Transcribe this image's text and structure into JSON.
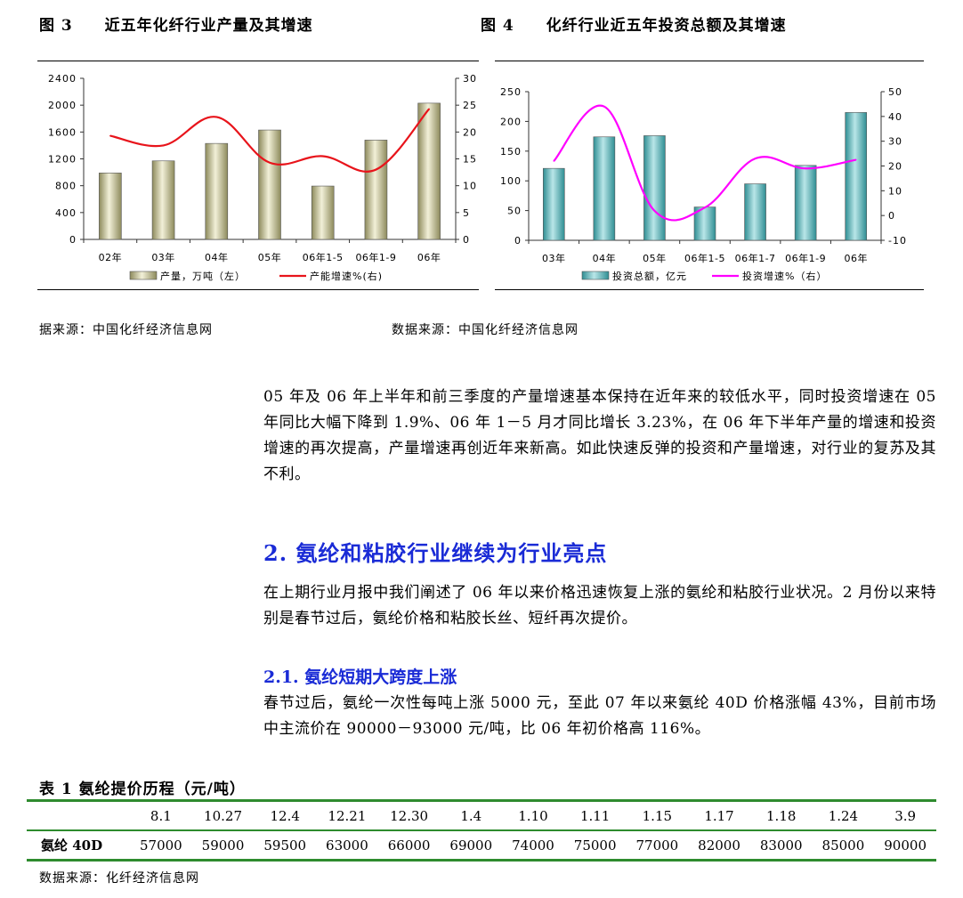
{
  "figure3": {
    "label": "图 3",
    "title": "近五年化纤行业产量及其增速",
    "source": "据来源：中国化纤经济信息网",
    "chart_data": {
      "type": "bar",
      "categories": [
        "02年",
        "03年",
        "04年",
        "05年",
        "06年1-5",
        "06年1-9",
        "06年"
      ],
      "series": [
        {
          "name": "产量，万吨（左）",
          "type": "bar",
          "axis": "left",
          "color": "#c8c49a",
          "values": [
            990,
            1170,
            1430,
            1630,
            795,
            1480,
            2030
          ]
        },
        {
          "name": "产能增速%(右)",
          "type": "line",
          "axis": "right",
          "color": "#e8141b",
          "values": [
            19.3,
            17.5,
            22.8,
            14.3,
            15.5,
            13.0,
            24.3
          ]
        }
      ],
      "ylim_left": [
        0,
        2400
      ],
      "yticks_left": [
        0,
        400,
        800,
        1200,
        1600,
        2000,
        2400
      ],
      "ylim_right": [
        0,
        30
      ],
      "yticks_right": [
        0,
        5,
        10,
        15,
        20,
        25,
        30
      ],
      "legend_position": "bottom",
      "grid": false
    }
  },
  "figure4": {
    "label": "图 4",
    "title": "化纤行业近五年投资总额及其增速",
    "source": "数据来源：中国化纤经济信息网",
    "chart_data": {
      "type": "bar",
      "categories": [
        "03年",
        "04年",
        "05年",
        "06年1-5",
        "06年1-7",
        "06年1-9",
        "06年"
      ],
      "series": [
        {
          "name": "投资总额，亿元",
          "type": "bar",
          "axis": "left",
          "color": "#6cc2c6",
          "values": [
            121,
            174,
            176,
            56,
            95,
            126,
            215
          ]
        },
        {
          "name": "投资增速%（右）",
          "type": "line",
          "axis": "right",
          "color": "#ff00ff",
          "values": [
            22,
            44,
            1.9,
            3.23,
            23,
            19,
            22.5
          ]
        }
      ],
      "ylim_left": [
        0,
        250
      ],
      "yticks_left": [
        0,
        50,
        100,
        150,
        200,
        250
      ],
      "ylim_right": [
        -10,
        50
      ],
      "yticks_right": [
        -10,
        0,
        10,
        20,
        30,
        40,
        50
      ],
      "legend_position": "bottom",
      "grid": false
    }
  },
  "body": {
    "para1": "05 年及 06 年上半年和前三季度的产量增速基本保持在近年来的较低水平，同时投资增速在 05 年同比大幅下降到 1.9%、06 年 1－5 月才同比增长 3.23%，在 06 年下半年产量的增速和投资增速的再次提高，产量增速再创近年来新高。如此快速反弹的投资和产量增速，对行业的复苏及其不利。",
    "section2_title": "2.  氨纶和粘胶行业继续为行业亮点",
    "para2": "在上期行业月报中我们阐述了 06 年以来价格迅速恢复上涨的氨纶和粘胶行业状况。2 月份以来特别是春节过后，氨纶价格和粘胶长丝、短纤再次提价。",
    "section21_title": "2.1. 氨纶短期大跨度上涨",
    "para3": "春节过后，氨纶一次性每吨上涨 5000 元，至此 07 年以来氨纶 40D 价格涨幅 43%，目前市场中主流价在 90000－93000 元/吨，比 06 年初价格高 116%。"
  },
  "table1": {
    "title": "表 1  氨纶提价历程（元/吨）",
    "headers": [
      "",
      "8.1",
      "10.27",
      "12.4",
      "12.21",
      "12.30",
      "1.4",
      "1.10",
      "1.11",
      "1.15",
      "1.17",
      "1.18",
      "1.24",
      "3.9"
    ],
    "row": [
      "氨纶 40D",
      "57000",
      "59000",
      "59500",
      "63000",
      "66000",
      "69000",
      "74000",
      "75000",
      "77000",
      "82000",
      "83000",
      "85000",
      "90000"
    ],
    "source": "数据来源：化纤经济信息网"
  }
}
